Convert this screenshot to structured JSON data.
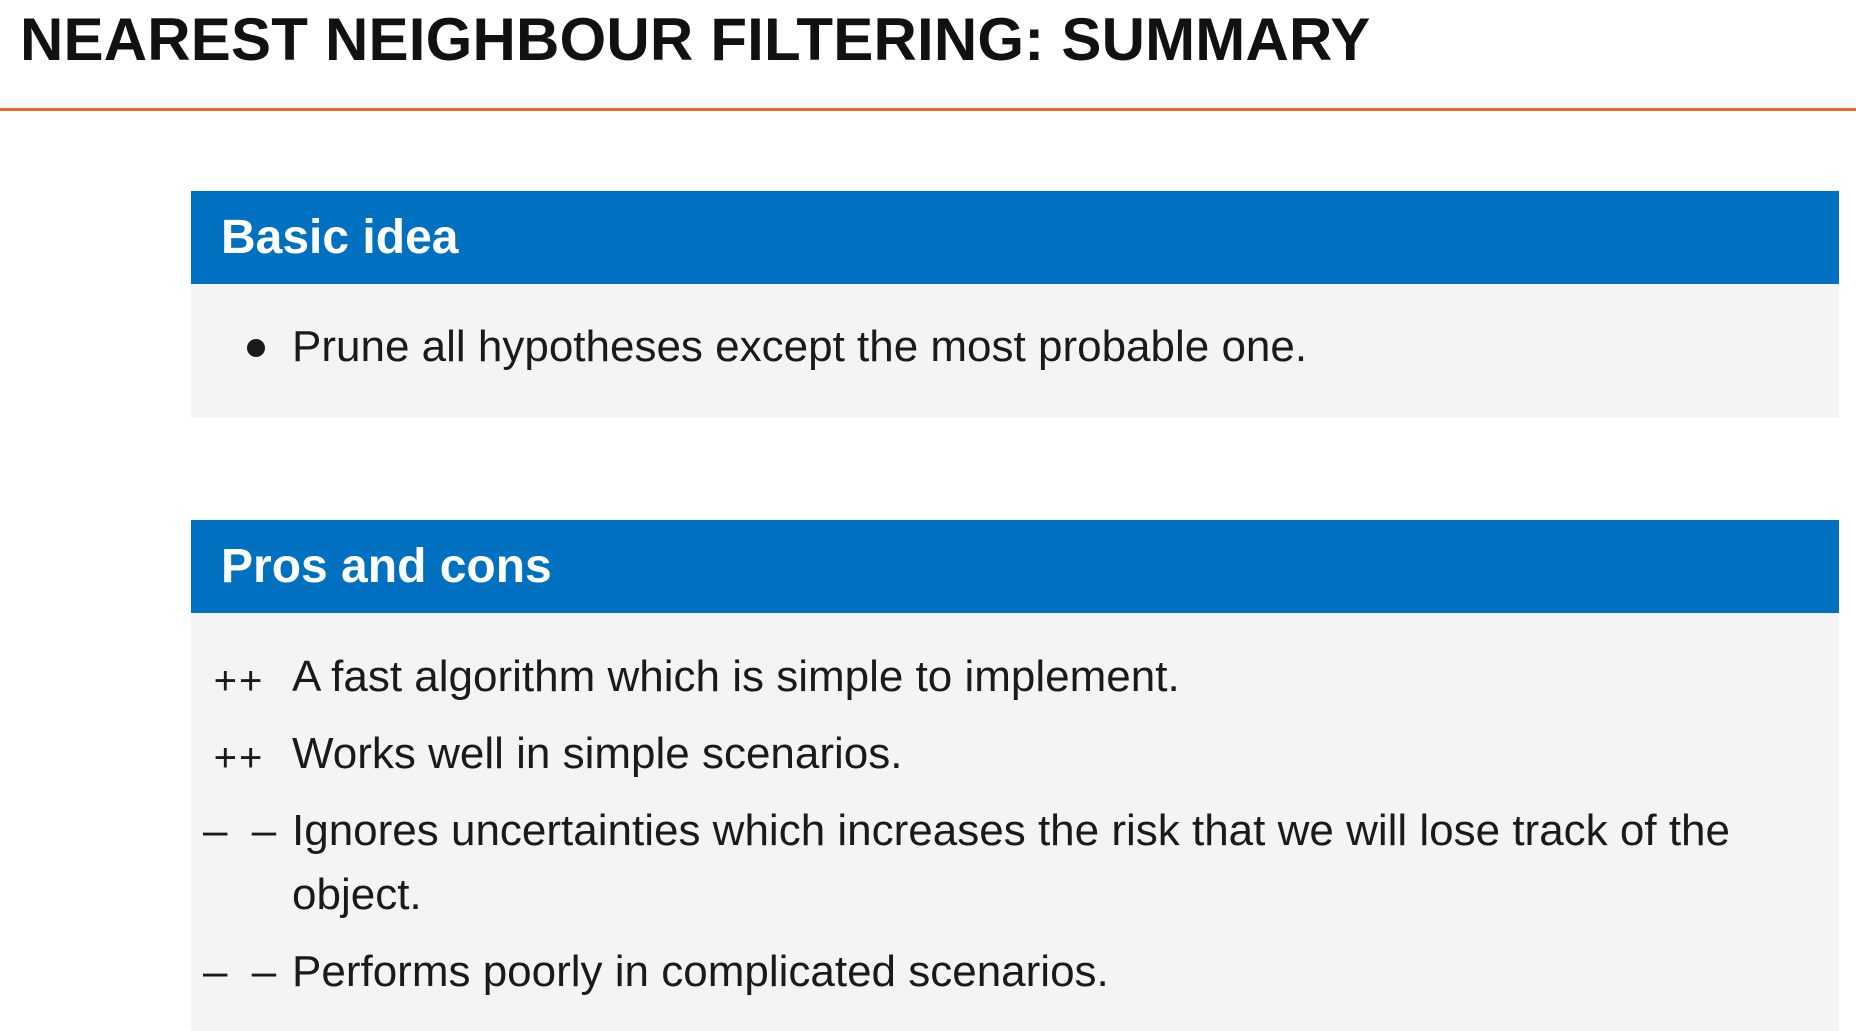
{
  "slide": {
    "title": "NEAREST NEIGHBOUR FILTERING: SUMMARY",
    "accent_color": "#ed6b24",
    "block_header_color": "#0070c0",
    "block_body_color": "#f4f4f4"
  },
  "basic_idea": {
    "header": "Basic idea",
    "items": [
      {
        "marker": "bullet",
        "text": "Prune all hypotheses except the most probable one."
      }
    ]
  },
  "pros_and_cons": {
    "header": "Pros and cons",
    "items": [
      {
        "marker": "++",
        "text": "A fast algorithm which is simple to implement."
      },
      {
        "marker": "++",
        "text": "Works well in simple scenarios."
      },
      {
        "marker": "– –",
        "text": "Ignores uncertainties which increases the risk that we will lose track of the object."
      },
      {
        "marker": "– –",
        "text": "Performs poorly in complicated scenarios."
      }
    ]
  }
}
